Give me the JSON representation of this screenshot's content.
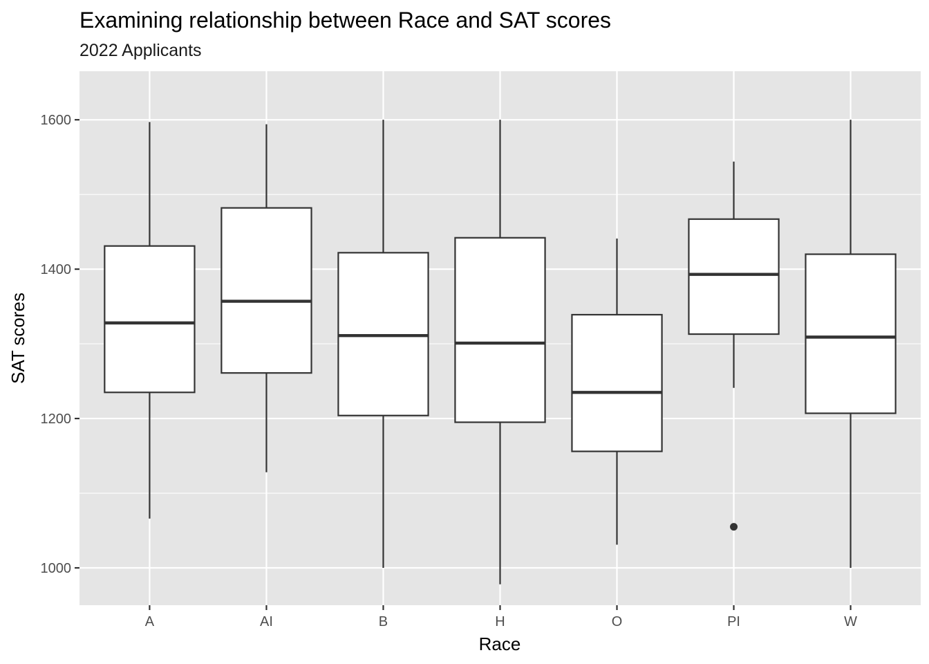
{
  "chart_data": {
    "type": "boxplot",
    "title": "Examining relationship between Race and SAT scores",
    "subtitle": "2022 Applicants",
    "xlabel": "Race",
    "ylabel": "SAT scores",
    "ylim": [
      950,
      1665
    ],
    "yticks": [
      1000,
      1200,
      1400,
      1600
    ],
    "grid": true,
    "categories": [
      "A",
      "AI",
      "B",
      "H",
      "O",
      "PI",
      "W"
    ],
    "boxes": [
      {
        "category": "A",
        "whisker_low": 1066,
        "q1": 1235,
        "median": 1328,
        "q3": 1431,
        "whisker_high": 1597,
        "outliers": []
      },
      {
        "category": "AI",
        "whisker_low": 1128,
        "q1": 1261,
        "median": 1357,
        "q3": 1482,
        "whisker_high": 1594,
        "outliers": []
      },
      {
        "category": "B",
        "whisker_low": 1000,
        "q1": 1204,
        "median": 1311,
        "q3": 1422,
        "whisker_high": 1600,
        "outliers": []
      },
      {
        "category": "H",
        "whisker_low": 978,
        "q1": 1195,
        "median": 1301,
        "q3": 1442,
        "whisker_high": 1600,
        "outliers": []
      },
      {
        "category": "O",
        "whisker_low": 1031,
        "q1": 1156,
        "median": 1235,
        "q3": 1339,
        "whisker_high": 1441,
        "outliers": []
      },
      {
        "category": "PI",
        "whisker_low": 1241,
        "q1": 1313,
        "median": 1393,
        "q3": 1467,
        "whisker_high": 1544,
        "outliers": [
          1055
        ]
      },
      {
        "category": "W",
        "whisker_low": 1000,
        "q1": 1207,
        "median": 1309,
        "q3": 1420,
        "whisker_high": 1600,
        "outliers": []
      }
    ],
    "colors": {
      "panel_background": "#e5e5e5",
      "grid": "#ffffff",
      "box_fill": "#ffffff",
      "box_stroke": "#333333",
      "axis_text": "#4d4d4d"
    }
  }
}
